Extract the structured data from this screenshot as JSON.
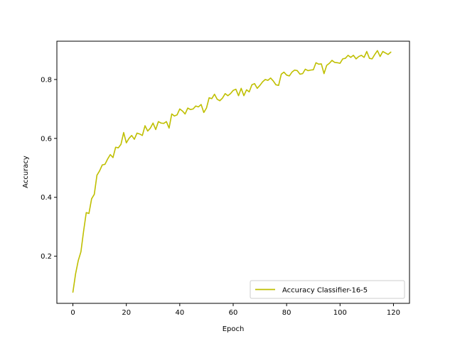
{
  "chart_data": {
    "type": "line",
    "xlabel": "Epoch",
    "ylabel": "Accuracy",
    "xlim": [
      -6,
      126
    ],
    "ylim": [
      0.04,
      0.93
    ],
    "xticks": [
      0,
      20,
      40,
      60,
      80,
      100,
      120
    ],
    "yticks": [
      0.2,
      0.4,
      0.6,
      0.8
    ],
    "grid": false,
    "legend_position": "lower-right",
    "series": [
      {
        "name": "Accuracy Classifier-16-5",
        "color": "#bfbf00",
        "x": [
          0,
          1,
          2,
          3,
          4,
          5,
          6,
          7,
          8,
          9,
          10,
          11,
          12,
          13,
          14,
          15,
          16,
          17,
          18,
          19,
          20,
          21,
          22,
          23,
          24,
          25,
          26,
          27,
          28,
          29,
          30,
          31,
          32,
          33,
          34,
          35,
          36,
          37,
          38,
          39,
          40,
          41,
          42,
          43,
          44,
          45,
          46,
          47,
          48,
          49,
          50,
          51,
          52,
          53,
          54,
          55,
          56,
          57,
          58,
          59,
          60,
          61,
          62,
          63,
          64,
          65,
          66,
          67,
          68,
          69,
          70,
          71,
          72,
          73,
          74,
          75,
          76,
          77,
          78,
          79,
          80,
          81,
          82,
          83,
          84,
          85,
          86,
          87,
          88,
          89,
          90,
          91,
          92,
          93,
          94,
          95,
          96,
          97,
          98,
          99,
          100,
          101,
          102,
          103,
          104,
          105,
          106,
          107,
          108,
          109,
          110,
          111,
          112,
          113,
          114,
          115,
          116,
          117,
          118,
          119
        ],
        "values": [
          0.078,
          0.14,
          0.185,
          0.215,
          0.285,
          0.348,
          0.345,
          0.395,
          0.41,
          0.475,
          0.49,
          0.51,
          0.512,
          0.53,
          0.545,
          0.535,
          0.57,
          0.568,
          0.58,
          0.62,
          0.585,
          0.6,
          0.61,
          0.597,
          0.618,
          0.615,
          0.61,
          0.643,
          0.625,
          0.635,
          0.652,
          0.63,
          0.657,
          0.652,
          0.651,
          0.657,
          0.635,
          0.683,
          0.676,
          0.68,
          0.7,
          0.693,
          0.683,
          0.703,
          0.698,
          0.7,
          0.71,
          0.707,
          0.715,
          0.688,
          0.703,
          0.738,
          0.735,
          0.75,
          0.733,
          0.728,
          0.737,
          0.752,
          0.745,
          0.752,
          0.763,
          0.767,
          0.745,
          0.77,
          0.745,
          0.765,
          0.758,
          0.782,
          0.786,
          0.77,
          0.78,
          0.792,
          0.8,
          0.797,
          0.805,
          0.795,
          0.782,
          0.78,
          0.818,
          0.825,
          0.815,
          0.812,
          0.825,
          0.832,
          0.83,
          0.818,
          0.82,
          0.835,
          0.83,
          0.832,
          0.833,
          0.857,
          0.852,
          0.853,
          0.82,
          0.848,
          0.855,
          0.865,
          0.858,
          0.857,
          0.855,
          0.87,
          0.872,
          0.882,
          0.875,
          0.882,
          0.87,
          0.878,
          0.882,
          0.875,
          0.895,
          0.872,
          0.87,
          0.885,
          0.898,
          0.878,
          0.895,
          0.89,
          0.885,
          0.893
        ]
      }
    ]
  }
}
